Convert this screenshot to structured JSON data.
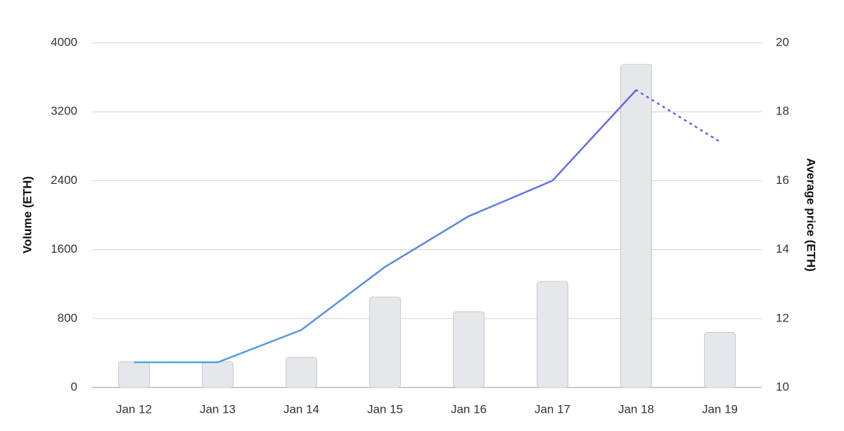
{
  "chart_data": {
    "type": "bar-line",
    "categories": [
      "Jan 12",
      "Jan 13",
      "Jan 14",
      "Jan 15",
      "Jan 16",
      "Jan 17",
      "Jan 18",
      "Jan 19"
    ],
    "y_label": "Volume (ETH)",
    "y2_label": "Average price (ETH)",
    "ylim": [
      0,
      4000
    ],
    "yticks": [
      0,
      800,
      1600,
      2400,
      3200,
      4000
    ],
    "y2lim": [
      10,
      20
    ],
    "y2ticks": [
      10,
      12,
      14,
      16,
      18,
      20
    ],
    "grid": true,
    "series": [
      {
        "type": "bar",
        "color": "#e6e7eb",
        "values": [
          300,
          300,
          350,
          1050,
          880,
          1230,
          3750,
          640
        ]
      },
      {
        "type": "line",
        "axis": "y2",
        "color": [
          "#4aaee0",
          "#6a5ae8"
        ],
        "dotted_from_index": 6,
        "values": [
          10.73,
          10.73,
          11.67,
          13.5,
          14.97,
          16.0,
          18.63,
          17.13
        ]
      }
    ]
  }
}
